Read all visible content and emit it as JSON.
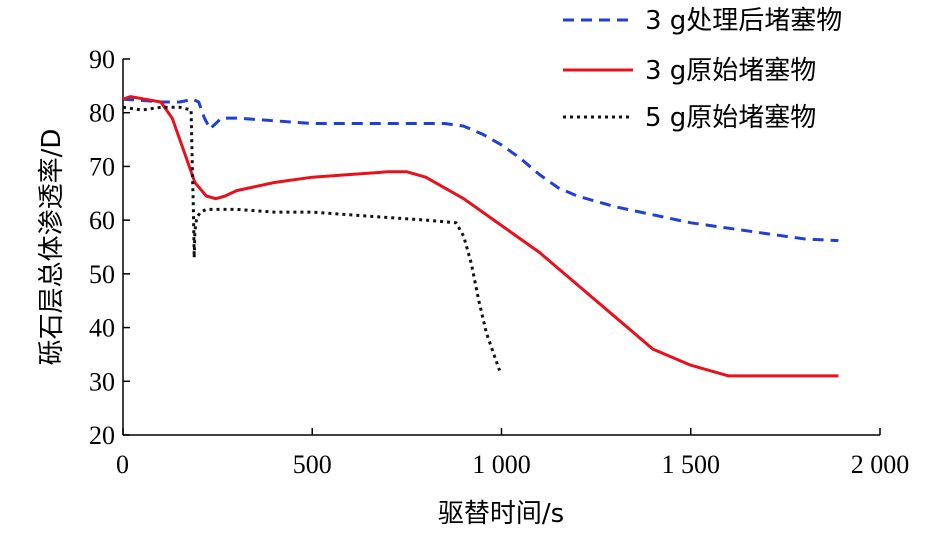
{
  "chart_data": {
    "type": "line",
    "title": "",
    "xlabel": "驱替时间/s",
    "ylabel": "砾石层总体渗透率/D",
    "xlim": [
      0,
      2000
    ],
    "ylim": [
      20,
      90
    ],
    "xticks": [
      0,
      500,
      1000,
      1500,
      2000
    ],
    "xtick_labels": [
      "0",
      "500",
      "1 000",
      "1 500",
      "2 000"
    ],
    "yticks": [
      20,
      30,
      40,
      50,
      60,
      70,
      80,
      90
    ],
    "ytick_labels": [
      "20",
      "30",
      "40",
      "50",
      "60",
      "70",
      "80",
      "90"
    ],
    "grid": false,
    "legend_position": "top-right",
    "series": [
      {
        "name": "3 g处理后堵塞物",
        "color": "#1f3fd6",
        "style": "dashed",
        "x": [
          0,
          50,
          100,
          150,
          185,
          200,
          215,
          230,
          260,
          300,
          400,
          500,
          600,
          700,
          800,
          850,
          900,
          950,
          1000,
          1050,
          1100,
          1150,
          1200,
          1300,
          1400,
          1500,
          1600,
          1700,
          1800,
          1890
        ],
        "y": [
          82.5,
          82.3,
          82.0,
          82.0,
          82.5,
          82.0,
          79,
          77,
          79,
          79,
          78.5,
          78,
          78,
          78,
          78,
          78,
          77.5,
          76,
          74,
          71.5,
          68.5,
          66,
          64.5,
          62.5,
          61,
          59.5,
          58.5,
          57.5,
          56.5,
          56.2
        ]
      },
      {
        "name": "3 g原始堵塞物",
        "color": "#e8101c",
        "style": "solid",
        "x": [
          0,
          20,
          60,
          100,
          130,
          160,
          190,
          220,
          245,
          270,
          300,
          400,
          500,
          600,
          700,
          750,
          800,
          850,
          900,
          1000,
          1100,
          1200,
          1300,
          1400,
          1500,
          1600,
          1650,
          1700,
          1800,
          1890
        ],
        "y": [
          82.5,
          83,
          82.5,
          82,
          79,
          73,
          67,
          64.5,
          64,
          64.5,
          65.5,
          67,
          68,
          68.5,
          69,
          69,
          68,
          66,
          64,
          59,
          54,
          48,
          42,
          36,
          33,
          31,
          31,
          31,
          31,
          31
        ]
      },
      {
        "name": "5 g原始堵塞物",
        "color": "#111111",
        "style": "dotted",
        "x": [
          0,
          50,
          100,
          150,
          180,
          183,
          186,
          188,
          190,
          195,
          205,
          220,
          300,
          400,
          500,
          600,
          700,
          800,
          880,
          900,
          920,
          940,
          960,
          980,
          995
        ],
        "y": [
          81,
          80.5,
          81,
          81,
          80.5,
          70,
          62,
          53,
          58,
          60.5,
          61.5,
          62,
          62,
          61.5,
          61.5,
          61,
          60.5,
          60,
          59.5,
          57,
          52,
          45,
          39,
          35,
          32
        ]
      }
    ]
  }
}
